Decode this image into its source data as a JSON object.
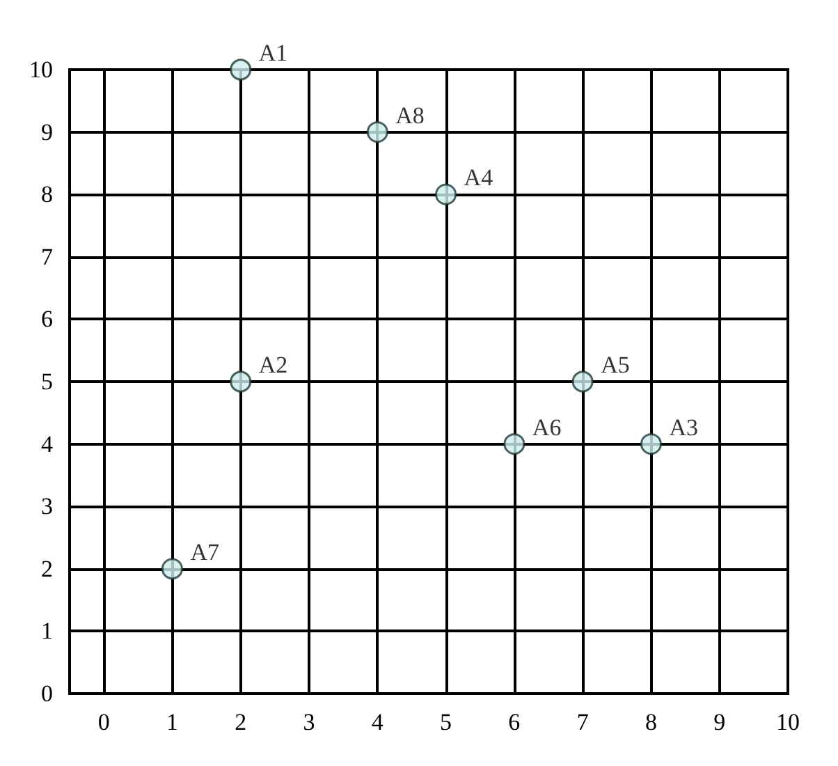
{
  "chart_data": {
    "type": "scatter",
    "x": [
      2,
      2,
      8,
      5,
      7,
      6,
      1,
      4
    ],
    "values": [
      10,
      5,
      4,
      8,
      5,
      4,
      2,
      9
    ],
    "color": "#cdeeee",
    "marker": "circle",
    "xlim": [
      -0.5,
      10
    ],
    "xticks": [
      0,
      1,
      2,
      3,
      4,
      5,
      6,
      7,
      8,
      9,
      10
    ],
    "ylim": [
      0,
      10
    ],
    "yticks": [
      0,
      1,
      2,
      3,
      4,
      5,
      6,
      7,
      8,
      9,
      10
    ],
    "grid": true,
    "annotations": [
      {
        "text": "A1",
        "x": 2,
        "y": 10
      },
      {
        "text": "A2",
        "x": 2,
        "y": 5
      },
      {
        "text": "A3",
        "x": 8,
        "y": 4
      },
      {
        "text": "A4",
        "x": 5,
        "y": 8
      },
      {
        "text": "A5",
        "x": 7,
        "y": 5
      },
      {
        "text": "A6",
        "x": 6,
        "y": 4
      },
      {
        "text": "A7",
        "x": 1,
        "y": 2
      },
      {
        "text": "A8",
        "x": 4,
        "y": 9
      }
    ]
  }
}
